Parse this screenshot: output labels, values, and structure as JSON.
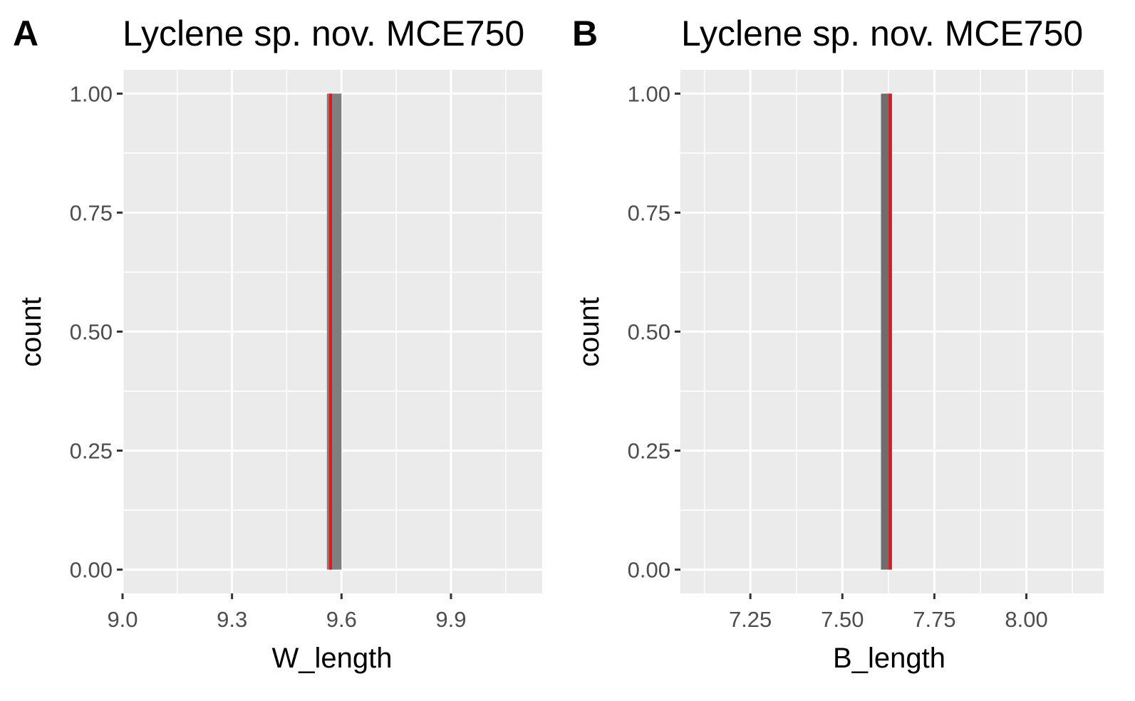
{
  "chart_data": [
    {
      "panel_tag": "A",
      "type": "bar",
      "title": "Lyclene sp. nov. MCE750",
      "xlabel": "W_length",
      "ylabel": "count",
      "xlim": [
        9.0,
        10.15
      ],
      "ylim": [
        -0.05,
        1.05
      ],
      "x_ticks": [
        9.0,
        9.3,
        9.6,
        9.9
      ],
      "x_tick_labels": [
        "9.0",
        "9.3",
        "9.6",
        "9.9"
      ],
      "y_ticks": [
        0,
        0.25,
        0.5,
        0.75,
        1.0
      ],
      "y_tick_labels": [
        "0.00",
        "0.25",
        "0.50",
        "0.75",
        "1.00"
      ],
      "bins": [
        {
          "x_start": 9.56,
          "x_end": 9.6,
          "count": 1
        }
      ],
      "vline": {
        "x": 9.57,
        "color": "#e8141c"
      },
      "bar_color": "#7f7f7f",
      "panel_bg": "#ebebeb",
      "grid": true
    },
    {
      "panel_tag": "B",
      "type": "bar",
      "title": "Lyclene sp. nov. MCE750",
      "xlabel": "B_length",
      "ylabel": "count",
      "xlim": [
        7.06,
        8.21
      ],
      "ylim": [
        -0.05,
        1.05
      ],
      "x_ticks": [
        7.25,
        7.5,
        7.75,
        8.0
      ],
      "x_tick_labels": [
        "7.25",
        "7.50",
        "7.75",
        "8.00"
      ],
      "y_ticks": [
        0,
        0.25,
        0.5,
        0.75,
        1.0
      ],
      "y_tick_labels": [
        "0.00",
        "0.25",
        "0.50",
        "0.75",
        "1.00"
      ],
      "bins": [
        {
          "x_start": 7.605,
          "x_end": 7.635,
          "count": 1
        }
      ],
      "vline": {
        "x": 7.63,
        "color": "#e8141c"
      },
      "bar_color": "#6e6e6e",
      "panel_bg": "#ebebeb",
      "grid": true
    }
  ]
}
